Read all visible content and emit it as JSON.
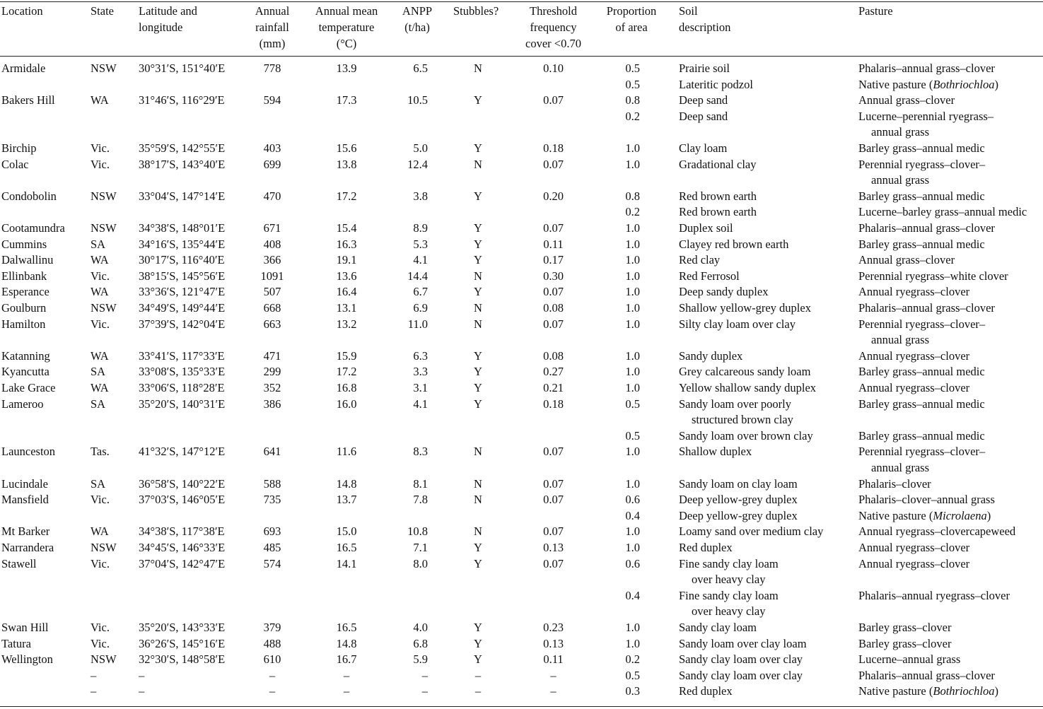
{
  "headers": [
    {
      "id": "location",
      "lines": [
        "Location"
      ]
    },
    {
      "id": "state",
      "lines": [
        "State"
      ]
    },
    {
      "id": "latlong",
      "lines": [
        "Latitude and",
        "longitude"
      ]
    },
    {
      "id": "rain",
      "lines": [
        "Annual",
        "rainfall",
        "(mm)"
      ]
    },
    {
      "id": "temp",
      "lines": [
        "Annual mean",
        "temperature",
        "(°C)"
      ]
    },
    {
      "id": "anpp",
      "lines": [
        "ANPP",
        "(t/ha)"
      ]
    },
    {
      "id": "stubbles",
      "lines": [
        "Stubbles?"
      ]
    },
    {
      "id": "thresh",
      "lines": [
        "Threshold",
        "frequency",
        "cover <0.70"
      ]
    },
    {
      "id": "prop",
      "lines": [
        "Proportion",
        "of area"
      ]
    },
    {
      "id": "soil",
      "lines": [
        "Soil",
        "description"
      ]
    },
    {
      "id": "pasture",
      "lines": [
        "Pasture"
      ]
    }
  ],
  "rows": [
    {
      "location": "Armidale",
      "state": "NSW",
      "latlong": "30°31′S, 151°40′E",
      "rain": "778",
      "temp": "13.9",
      "anpp": "6.5",
      "stubbles": "N",
      "thresh": "0.10",
      "prop": "0.5",
      "soil": [
        "Prairie soil"
      ],
      "pasture": [
        "Phalaris–annual grass–clover"
      ]
    },
    {
      "prop": "0.5",
      "soil": [
        "Lateritic podzol"
      ],
      "pasture": [
        "Native pasture (",
        "Bothriochloa",
        ")"
      ],
      "pasture_italic": true
    },
    {
      "location": "Bakers Hill",
      "state": "WA",
      "latlong": "31°46′S, 116°29′E",
      "rain": "594",
      "temp": "17.3",
      "anpp": "10.5",
      "stubbles": "Y",
      "thresh": "0.07",
      "prop": "0.8",
      "soil": [
        "Deep sand"
      ],
      "pasture": [
        "Annual grass–clover"
      ]
    },
    {
      "prop": "0.2",
      "soil": [
        "Deep sand"
      ],
      "pasture": [
        "Lucerne–perennial ryegrass–",
        "annual grass"
      ]
    },
    {
      "location": "Birchip",
      "state": "Vic.",
      "latlong": "35°59′S, 142°55′E",
      "rain": "403",
      "temp": "15.6",
      "anpp": "5.0",
      "stubbles": "Y",
      "thresh": "0.18",
      "prop": "1.0",
      "soil": [
        "Clay loam"
      ],
      "pasture": [
        "Barley grass–annual medic"
      ]
    },
    {
      "location": "Colac",
      "state": "Vic.",
      "latlong": "38°17′S, 143°40′E",
      "rain": "699",
      "temp": "13.8",
      "anpp": "12.4",
      "stubbles": "N",
      "thresh": "0.07",
      "prop": "1.0",
      "soil": [
        "Gradational clay"
      ],
      "pasture": [
        "Perennial ryegrass–clover–",
        "annual grass"
      ]
    },
    {
      "location": "Condobolin",
      "state": "NSW",
      "latlong": "33°04′S, 147°14′E",
      "rain": "470",
      "temp": "17.2",
      "anpp": "3.8",
      "stubbles": "Y",
      "thresh": "0.20",
      "prop": "0.8",
      "soil": [
        "Red brown earth"
      ],
      "pasture": [
        "Barley grass–annual medic"
      ]
    },
    {
      "prop": "0.2",
      "soil": [
        "Red brown earth"
      ],
      "pasture": [
        "Lucerne–barley grass–annual medic"
      ]
    },
    {
      "location": "Cootamundra",
      "state": "NSW",
      "latlong": "34°38′S, 148°01′E",
      "rain": "671",
      "temp": "15.4",
      "anpp": "8.9",
      "stubbles": "Y",
      "thresh": "0.07",
      "prop": "1.0",
      "soil": [
        "Duplex soil"
      ],
      "pasture": [
        "Phalaris–annual grass–clover"
      ]
    },
    {
      "location": "Cummins",
      "state": "SA",
      "latlong": "34°16′S, 135°44′E",
      "rain": "408",
      "temp": "16.3",
      "anpp": "5.3",
      "stubbles": "Y",
      "thresh": "0.11",
      "prop": "1.0",
      "soil": [
        "Clayey red brown earth"
      ],
      "pasture": [
        "Barley grass–annual medic"
      ]
    },
    {
      "location": "Dalwallinu",
      "state": "WA",
      "latlong": "30°17′S, 116°40′E",
      "rain": "366",
      "temp": "19.1",
      "anpp": "4.1",
      "stubbles": "Y",
      "thresh": "0.17",
      "prop": "1.0",
      "soil": [
        "Red clay"
      ],
      "pasture": [
        "Annual grass–clover"
      ]
    },
    {
      "location": "Ellinbank",
      "state": "Vic.",
      "latlong": "38°15′S, 145°56′E",
      "rain": "1091",
      "temp": "13.6",
      "anpp": "14.4",
      "stubbles": "N",
      "thresh": "0.30",
      "prop": "1.0",
      "soil": [
        "Red Ferrosol"
      ],
      "pasture": [
        "Perennial ryegrass–white clover"
      ]
    },
    {
      "location": "Esperance",
      "state": "WA",
      "latlong": "33°36′S, 121°47′E",
      "rain": "507",
      "temp": "16.4",
      "anpp": "6.7",
      "stubbles": "Y",
      "thresh": "0.07",
      "prop": "1.0",
      "soil": [
        "Deep sandy duplex"
      ],
      "pasture": [
        "Annual ryegrass–clover"
      ]
    },
    {
      "location": "Goulburn",
      "state": "NSW",
      "latlong": "34°49′S, 149°44′E",
      "rain": "668",
      "temp": "13.1",
      "anpp": "6.9",
      "stubbles": "N",
      "thresh": "0.08",
      "prop": "1.0",
      "soil": [
        "Shallow yellow-grey duplex"
      ],
      "pasture": [
        "Phalaris–annual grass–clover"
      ]
    },
    {
      "location": "Hamilton",
      "state": "Vic.",
      "latlong": "37°39′S, 142°04′E",
      "rain": "663",
      "temp": "13.2",
      "anpp": "11.0",
      "stubbles": "N",
      "thresh": "0.07",
      "prop": "1.0",
      "soil": [
        "Silty clay loam over clay"
      ],
      "pasture": [
        "Perennial ryegrass–clover–",
        "annual grass"
      ]
    },
    {
      "location": "Katanning",
      "state": "WA",
      "latlong": "33°41′S, 117°33′E",
      "rain": "471",
      "temp": "15.9",
      "anpp": "6.3",
      "stubbles": "Y",
      "thresh": "0.08",
      "prop": "1.0",
      "soil": [
        "Sandy duplex"
      ],
      "pasture": [
        "Annual ryegrass–clover"
      ]
    },
    {
      "location": "Kyancutta",
      "state": "SA",
      "latlong": "33°08′S, 135°33′E",
      "rain": "299",
      "temp": "17.2",
      "anpp": "3.3",
      "stubbles": "Y",
      "thresh": "0.27",
      "prop": "1.0",
      "soil": [
        "Grey calcareous sandy loam"
      ],
      "pasture": [
        "Barley grass–annual medic"
      ]
    },
    {
      "location": "Lake Grace",
      "state": "WA",
      "latlong": "33°06′S, 118°28′E",
      "rain": "352",
      "temp": "16.8",
      "anpp": "3.1",
      "stubbles": "Y",
      "thresh": "0.21",
      "prop": "1.0",
      "soil": [
        "Yellow shallow sandy duplex"
      ],
      "pasture": [
        "Annual ryegrass–clover"
      ]
    },
    {
      "location": "Lameroo",
      "state": "SA",
      "latlong": "35°20′S, 140°31′E",
      "rain": "386",
      "temp": "16.0",
      "anpp": "4.1",
      "stubbles": "Y",
      "thresh": "0.18",
      "prop": "0.5",
      "soil": [
        "Sandy loam over poorly",
        "structured brown clay"
      ],
      "pasture": [
        "Barley grass–annual medic"
      ]
    },
    {
      "prop": "0.5",
      "soil": [
        "Sandy loam over brown clay"
      ],
      "pasture": [
        "Barley grass–annual medic"
      ]
    },
    {
      "location": "Launceston",
      "state": "Tas.",
      "latlong": "41°32′S, 147°12′E",
      "rain": "641",
      "temp": "11.6",
      "anpp": "8.3",
      "stubbles": "N",
      "thresh": "0.07",
      "prop": "1.0",
      "soil": [
        "Shallow duplex"
      ],
      "pasture": [
        "Perennial ryegrass–clover–",
        "annual grass"
      ]
    },
    {
      "location": "Lucindale",
      "state": "SA",
      "latlong": "36°58′S, 140°22′E",
      "rain": "588",
      "temp": "14.8",
      "anpp": "8.1",
      "stubbles": "N",
      "thresh": "0.07",
      "prop": "1.0",
      "soil": [
        "Sandy loam on clay loam"
      ],
      "pasture": [
        "Phalaris–clover"
      ]
    },
    {
      "location": "Mansfield",
      "state": "Vic.",
      "latlong": "37°03′S, 146°05′E",
      "rain": "735",
      "temp": "13.7",
      "anpp": "7.8",
      "stubbles": "N",
      "thresh": "0.07",
      "prop": "0.6",
      "soil": [
        "Deep yellow-grey duplex"
      ],
      "pasture": [
        "Phalaris–clover–annual grass"
      ]
    },
    {
      "prop": "0.4",
      "soil": [
        "Deep yellow-grey duplex"
      ],
      "pasture": [
        "Native pasture (",
        "Microlaena",
        ")"
      ],
      "pasture_italic": true
    },
    {
      "location": "Mt Barker",
      "state": "WA",
      "latlong": "34°38′S, 117°38′E",
      "rain": "693",
      "temp": "15.0",
      "anpp": "10.8",
      "stubbles": "N",
      "thresh": "0.07",
      "prop": "1.0",
      "soil": [
        "Loamy sand over medium clay"
      ],
      "pasture": [
        "Annual ryegrass–clovercapeweed"
      ]
    },
    {
      "location": "Narrandera",
      "state": "NSW",
      "latlong": "34°45′S, 146°33′E",
      "rain": "485",
      "temp": "16.5",
      "anpp": "7.1",
      "stubbles": "Y",
      "thresh": "0.13",
      "prop": "1.0",
      "soil": [
        "Red duplex"
      ],
      "pasture": [
        "Annual ryegrass–clover"
      ]
    },
    {
      "location": "Stawell",
      "state": "Vic.",
      "latlong": "37°04′S, 142°47′E",
      "rain": "574",
      "temp": "14.1",
      "anpp": "8.0",
      "stubbles": "Y",
      "thresh": "0.07",
      "prop": "0.6",
      "soil": [
        "Fine sandy clay loam",
        "over heavy clay"
      ],
      "pasture": [
        "Annual ryegrass–clover"
      ]
    },
    {
      "prop": "0.4",
      "soil": [
        "Fine sandy clay loam",
        "over heavy clay"
      ],
      "pasture": [
        "Phalaris–annual ryegrass–clover"
      ]
    },
    {
      "location": "Swan Hill",
      "state": "Vic.",
      "latlong": "35°20′S, 143°33′E",
      "rain": "379",
      "temp": "16.5",
      "anpp": "4.0",
      "stubbles": "Y",
      "thresh": "0.23",
      "prop": "1.0",
      "soil": [
        "Sandy clay loam"
      ],
      "pasture": [
        "Barley grass–clover"
      ]
    },
    {
      "location": "Tatura",
      "state": "Vic.",
      "latlong": "36°26′S, 145°16′E",
      "rain": "488",
      "temp": "14.8",
      "anpp": "6.8",
      "stubbles": "Y",
      "thresh": "0.13",
      "prop": "1.0",
      "soil": [
        "Sandy loam over clay loam"
      ],
      "pasture": [
        "Barley grass–clover"
      ]
    },
    {
      "location": "Wellington",
      "state": "NSW",
      "latlong": "32°30′S, 148°58′E",
      "rain": "610",
      "temp": "16.7",
      "anpp": "5.9",
      "stubbles": "Y",
      "thresh": "0.11",
      "prop": "0.2",
      "soil": [
        "Sandy clay loam over clay"
      ],
      "pasture": [
        "Lucerne–annual grass"
      ]
    },
    {
      "state": "–",
      "latlong": "–",
      "rain": "–",
      "temp": "–",
      "anpp": "–",
      "stubbles": "–",
      "thresh": "–",
      "prop": "0.5",
      "soil": [
        "Sandy clay loam over clay"
      ],
      "pasture": [
        "Phalaris–annual grass–clover"
      ]
    },
    {
      "state": "–",
      "latlong": "–",
      "rain": "–",
      "temp": "–",
      "anpp": "–",
      "stubbles": "–",
      "thresh": "–",
      "prop": "0.3",
      "soil": [
        "Red duplex"
      ],
      "pasture": [
        "Native pasture (",
        "Bothriochloa",
        ")"
      ],
      "pasture_italic": true
    }
  ]
}
